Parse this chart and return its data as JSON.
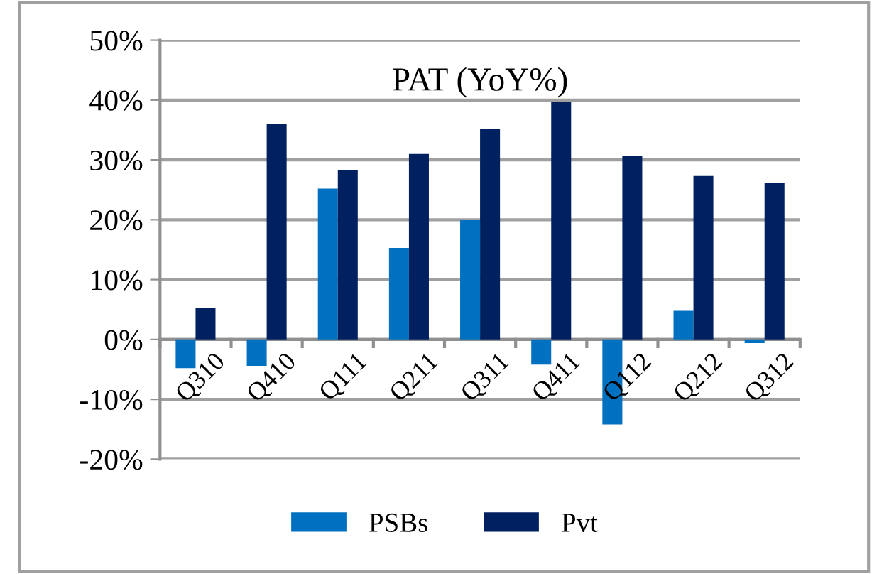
{
  "chart_data": {
    "type": "bar",
    "title": "PAT (YoY%)",
    "categories": [
      "Q310",
      "Q410",
      "Q111",
      "Q211",
      "Q311",
      "Q411",
      "Q112",
      "Q212",
      "Q312"
    ],
    "series": [
      {
        "name": "PSBs",
        "color": "#0070c0",
        "values": [
          -4.8,
          -4.4,
          25.2,
          15.3,
          20.0,
          -4.2,
          -14.2,
          4.8,
          -0.6
        ]
      },
      {
        "name": "Pvt",
        "color": "#002060",
        "values": [
          5.3,
          36.0,
          28.3,
          31.0,
          35.2,
          39.7,
          30.6,
          27.3,
          26.2
        ]
      }
    ],
    "ylim": [
      -20,
      50
    ],
    "yticks": [
      {
        "value": -20,
        "label": "-20%"
      },
      {
        "value": -10,
        "label": "-10%"
      },
      {
        "value": 0,
        "label": "0%"
      },
      {
        "value": 10,
        "label": "10%"
      },
      {
        "value": 20,
        "label": "20%"
      },
      {
        "value": 30,
        "label": "30%"
      },
      {
        "value": 40,
        "label": "40%"
      },
      {
        "value": 50,
        "label": "50%"
      }
    ],
    "grid": "y",
    "legend": "bottom"
  }
}
